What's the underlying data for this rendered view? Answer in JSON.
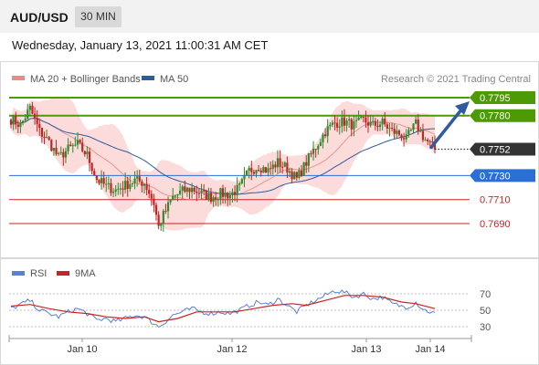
{
  "header": {
    "symbol": "AUD/USD",
    "timeframe": "30 MIN",
    "datetime": "Wednesday, January 13, 2021 11:00:31 AM CET"
  },
  "chart_data": [
    {
      "type": "candlestick",
      "legend": [
        {
          "label": "MA 20 + Bollinger Bands",
          "color": "#e88a8a"
        },
        {
          "label": "MA 50",
          "color": "#2e5c9e"
        }
      ],
      "credit": "Research © 2021 Trading Central",
      "last_price": "0.7752",
      "levels": [
        {
          "label": "0.7795",
          "value": 0.7795,
          "kind": "resistance"
        },
        {
          "label": "0.7780",
          "value": 0.778,
          "kind": "resistance"
        },
        {
          "label": "0.7730",
          "value": 0.773,
          "kind": "pivot"
        },
        {
          "label": "0.7710",
          "value": 0.771,
          "kind": "support"
        },
        {
          "label": "0.7690",
          "value": 0.769,
          "kind": "support"
        }
      ],
      "x_ticks": [
        "Jan 10",
        "Jan 12",
        "Jan 13",
        "Jan 14"
      ],
      "colors": {
        "up": "#2d8a2d",
        "down": "#c62222",
        "bands": "#fbd5d5",
        "ma20": "#e57373",
        "ma50": "#2e5c9e",
        "resistance": "#4e9a06",
        "pivot": "#2a6fd6",
        "support": "#cc2222",
        "last": "#333333"
      },
      "price_path": [
        [
          0,
          0.7777
        ],
        [
          4,
          0.7772
        ],
        [
          8,
          0.7786
        ],
        [
          12,
          0.7767
        ],
        [
          16,
          0.7758
        ],
        [
          20,
          0.7745
        ],
        [
          24,
          0.7752
        ],
        [
          28,
          0.7756
        ],
        [
          32,
          0.7747
        ],
        [
          36,
          0.7727
        ],
        [
          40,
          0.7721
        ],
        [
          44,
          0.7718
        ],
        [
          48,
          0.7722
        ],
        [
          52,
          0.7726
        ],
        [
          56,
          0.7724
        ],
        [
          58,
          0.7716
        ],
        [
          60,
          0.7707
        ],
        [
          62,
          0.7687
        ],
        [
          64,
          0.7697
        ],
        [
          68,
          0.7712
        ],
        [
          72,
          0.7717
        ],
        [
          76,
          0.7719
        ],
        [
          80,
          0.7715
        ],
        [
          84,
          0.7712
        ],
        [
          88,
          0.7715
        ],
        [
          92,
          0.7714
        ],
        [
          96,
          0.772
        ],
        [
          100,
          0.7734
        ],
        [
          104,
          0.7738
        ],
        [
          108,
          0.7734
        ],
        [
          112,
          0.7741
        ],
        [
          116,
          0.7736
        ],
        [
          120,
          0.7727
        ],
        [
          124,
          0.7741
        ],
        [
          128,
          0.7754
        ],
        [
          132,
          0.7767
        ],
        [
          136,
          0.7774
        ],
        [
          140,
          0.7775
        ],
        [
          144,
          0.7772
        ],
        [
          148,
          0.7776
        ],
        [
          152,
          0.7772
        ],
        [
          156,
          0.7774
        ],
        [
          160,
          0.7767
        ],
        [
          164,
          0.7764
        ],
        [
          166,
          0.776
        ],
        [
          168,
          0.7767
        ],
        [
          170,
          0.7773
        ],
        [
          172,
          0.7766
        ],
        [
          174,
          0.776
        ],
        [
          176,
          0.7756
        ],
        [
          178,
          0.7752
        ]
      ],
      "forecast_target": 0.7795
    },
    {
      "type": "line",
      "legend": [
        {
          "label": "RSI",
          "color": "#5b7fd6"
        },
        {
          "label": "9MA",
          "color": "#cc2222"
        }
      ],
      "y_ticks": [
        70,
        50,
        30
      ],
      "ylim": [
        20,
        80
      ],
      "x_ticks": [
        "Jan 10",
        "Jan 12",
        "Jan 13",
        "Jan 14"
      ],
      "series": [
        {
          "name": "RSI",
          "values": [
            [
              0,
              52
            ],
            [
              4,
              57
            ],
            [
              8,
              62
            ],
            [
              12,
              50
            ],
            [
              16,
              46
            ],
            [
              20,
              42
            ],
            [
              24,
              48
            ],
            [
              28,
              52
            ],
            [
              32,
              46
            ],
            [
              36,
              38
            ],
            [
              40,
              40
            ],
            [
              44,
              36
            ],
            [
              48,
              40
            ],
            [
              52,
              44
            ],
            [
              56,
              42
            ],
            [
              58,
              38
            ],
            [
              60,
              34
            ],
            [
              62,
              30
            ],
            [
              64,
              34
            ],
            [
              68,
              44
            ],
            [
              72,
              48
            ],
            [
              76,
              52
            ],
            [
              80,
              48
            ],
            [
              84,
              46
            ],
            [
              88,
              48
            ],
            [
              92,
              46
            ],
            [
              96,
              50
            ],
            [
              100,
              56
            ],
            [
              104,
              60
            ],
            [
              108,
              56
            ],
            [
              112,
              64
            ],
            [
              116,
              56
            ],
            [
              120,
              48
            ],
            [
              124,
              56
            ],
            [
              128,
              62
            ],
            [
              132,
              68
            ],
            [
              136,
              74
            ],
            [
              140,
              72
            ],
            [
              144,
              66
            ],
            [
              148,
              70
            ],
            [
              152,
              64
            ],
            [
              156,
              66
            ],
            [
              160,
              58
            ],
            [
              164,
              55
            ],
            [
              166,
              54
            ],
            [
              168,
              56
            ],
            [
              170,
              60
            ],
            [
              172,
              54
            ],
            [
              174,
              50
            ],
            [
              176,
              48
            ],
            [
              178,
              46
            ]
          ]
        },
        {
          "name": "9MA",
          "values": [
            [
              0,
              55
            ],
            [
              8,
              57
            ],
            [
              16,
              52
            ],
            [
              24,
              48
            ],
            [
              32,
              46
            ],
            [
              40,
              42
            ],
            [
              48,
              40
            ],
            [
              56,
              42
            ],
            [
              62,
              36
            ],
            [
              70,
              40
            ],
            [
              78,
              48
            ],
            [
              86,
              48
            ],
            [
              94,
              48
            ],
            [
              102,
              52
            ],
            [
              110,
              56
            ],
            [
              118,
              58
            ],
            [
              124,
              56
            ],
            [
              132,
              62
            ],
            [
              140,
              68
            ],
            [
              148,
              68
            ],
            [
              156,
              66
            ],
            [
              164,
              60
            ],
            [
              170,
              58
            ],
            [
              178,
              52
            ]
          ]
        }
      ]
    }
  ]
}
